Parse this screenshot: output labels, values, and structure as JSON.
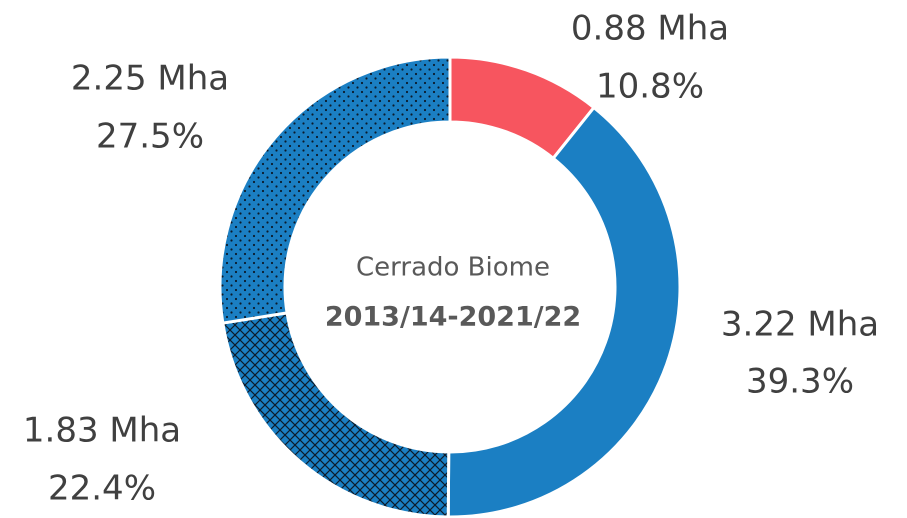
{
  "chart_data": {
    "type": "donut",
    "center_title": "Cerrado Biome",
    "center_subtitle": "2013/14-2021/22",
    "values": [
      0.88,
      3.22,
      1.83,
      2.25
    ],
    "value_labels": [
      "0.88 Mha",
      "3.22 Mha",
      "1.83 Mha",
      "2.25 Mha"
    ],
    "percent_labels": [
      "10.8%",
      "39.3%",
      "22.4%",
      "27.5%"
    ],
    "colors": [
      "#f7555f",
      "#1b7fc3",
      "#1b7fc3",
      "#1b7fc3"
    ],
    "patterns": [
      "solid",
      "solid",
      "crosshatch",
      "dots"
    ]
  }
}
